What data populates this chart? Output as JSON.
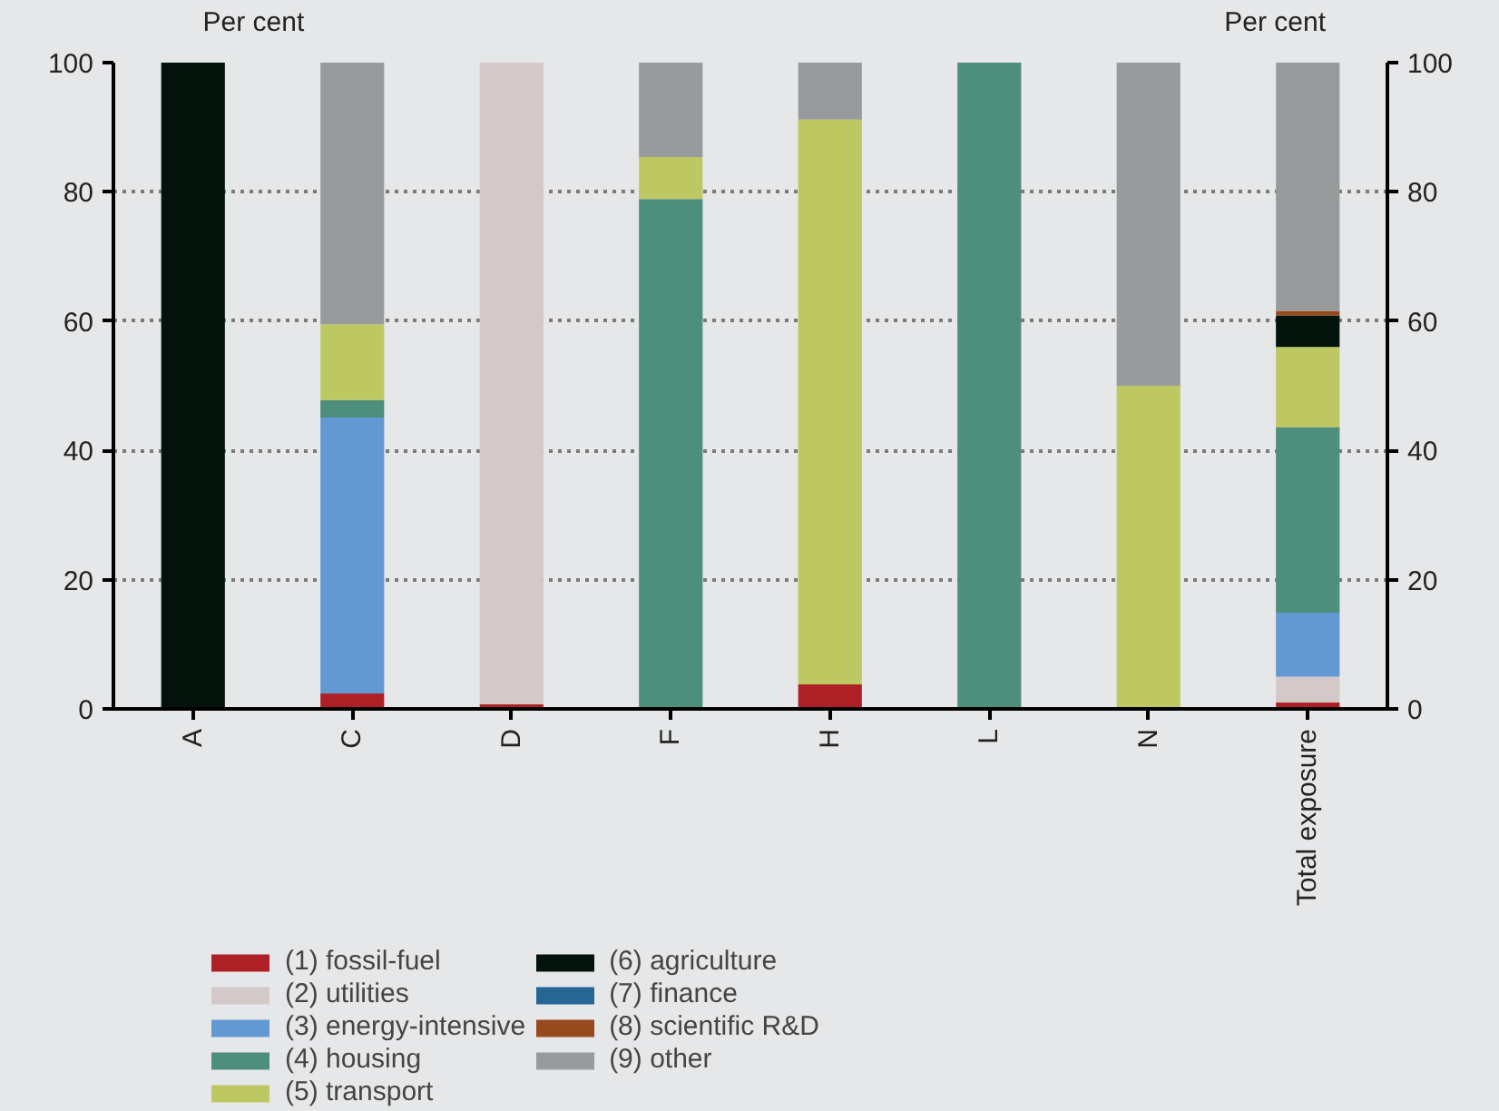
{
  "chart_data": {
    "type": "bar",
    "stacked": true,
    "ylabel": "Per cent",
    "y2label": "Per cent",
    "categories": [
      "A",
      "C",
      "D",
      "F",
      "H",
      "L",
      "N",
      "Total exposure"
    ],
    "series": [
      {
        "name": "(1) fossil-fuel",
        "color": "#ad2126",
        "values": [
          0,
          2.4,
          0.7,
          0,
          3.8,
          0,
          0,
          1.0
        ]
      },
      {
        "name": "(2) utilities",
        "color": "#d3c9c8",
        "values": [
          0,
          0,
          99.3,
          0,
          0,
          0,
          0,
          4.0
        ]
      },
      {
        "name": "(3) energy-intensive",
        "color": "#6399d2",
        "values": [
          0,
          42.7,
          0,
          0,
          0,
          0,
          0,
          9.9
        ]
      },
      {
        "name": "(4) housing",
        "color": "#4e8e7c",
        "values": [
          0,
          2.7,
          0,
          78.9,
          0,
          100,
          0,
          28.7
        ]
      },
      {
        "name": "(5) transport",
        "color": "#bdc862",
        "values": [
          0,
          11.7,
          0,
          6.5,
          87.4,
          0,
          50,
          12.4
        ]
      },
      {
        "name": "(6) agriculture",
        "color": "#03130c",
        "values": [
          100,
          0,
          0,
          0,
          0,
          0,
          0,
          4.9
        ]
      },
      {
        "name": "(7) finance",
        "color": "#256695",
        "values": [
          0,
          0,
          0,
          0,
          0,
          0,
          0,
          0
        ]
      },
      {
        "name": "(8) scientific R&D",
        "color": "#984a1f",
        "values": [
          0,
          0,
          0,
          0,
          0,
          0,
          0,
          0.7
        ]
      },
      {
        "name": "(9) other",
        "color": "#989b9c",
        "values": [
          0,
          40.5,
          0,
          14.6,
          8.8,
          0,
          50,
          38.4
        ]
      }
    ],
    "ylim": [
      0,
      100
    ],
    "yticks": [
      0,
      20,
      40,
      60,
      80,
      100
    ],
    "y2lim": [
      0,
      100
    ],
    "y2ticks": [
      0,
      20,
      40,
      60,
      80,
      100
    ],
    "grid": "y",
    "legend": "bottom"
  }
}
